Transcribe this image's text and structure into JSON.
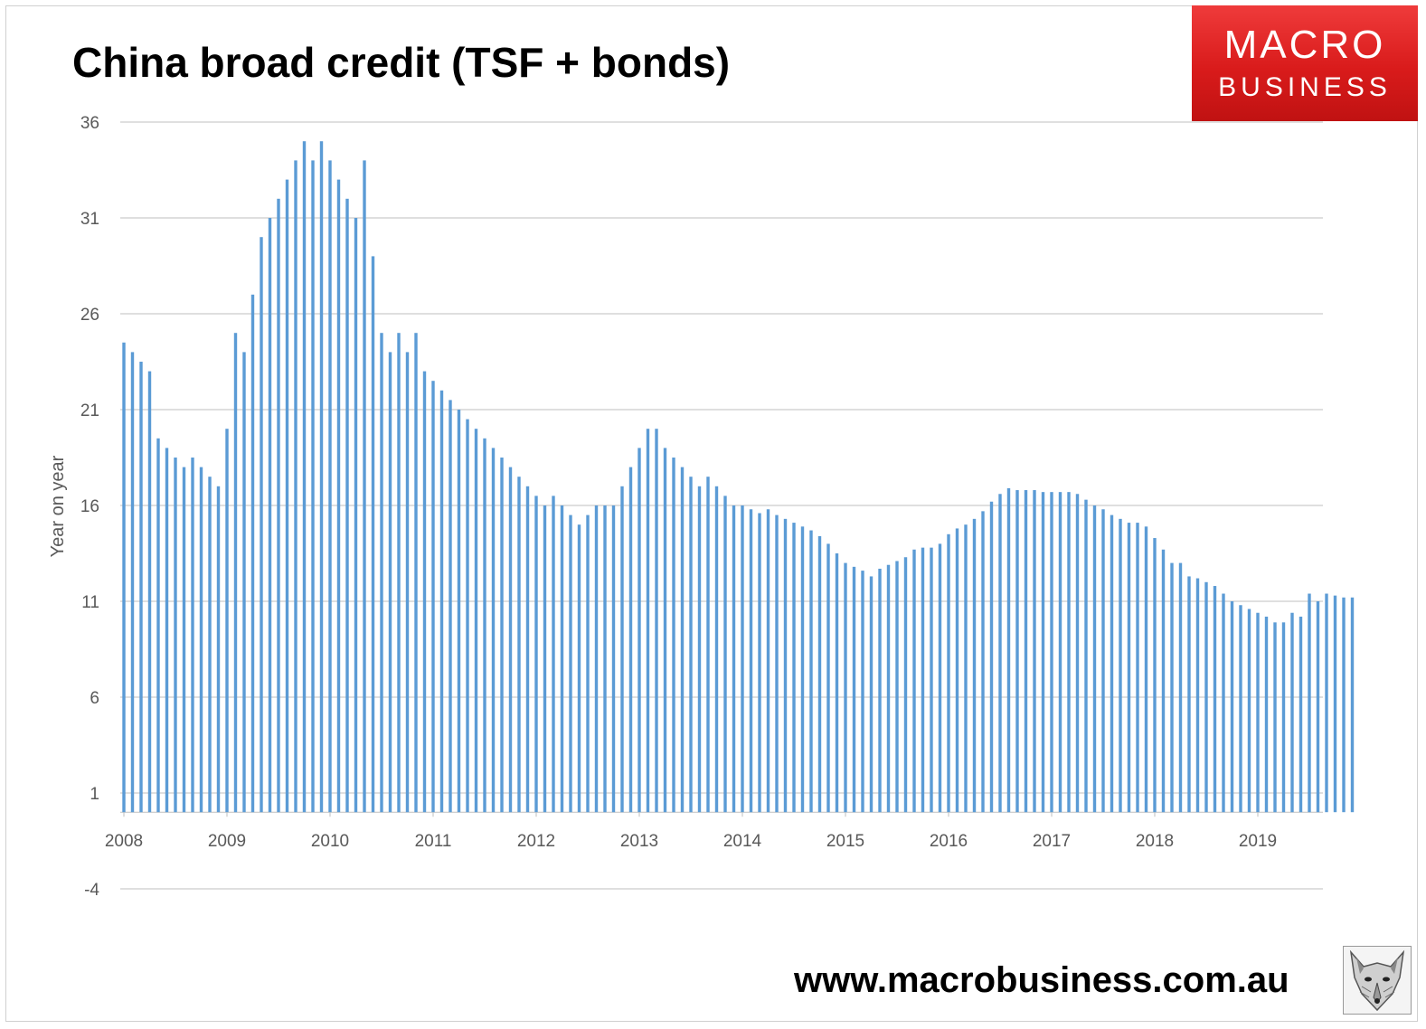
{
  "title": "China broad credit (TSF + bonds)",
  "logo": {
    "line1": "MACRO",
    "line2": "BUSINESS",
    "color": "#d9261c"
  },
  "footer": {
    "url": "www.macrobusiness.com.au",
    "icon": "wolf-head-icon"
  },
  "colors": {
    "bar": "#5b9bd5",
    "grid": "#bfbfbf",
    "axis_text": "#595959"
  },
  "chart_data": {
    "type": "bar",
    "title": "China broad credit (TSF + bonds)",
    "xlabel": "",
    "ylabel": "Year on year",
    "ylim": [
      -4,
      36
    ],
    "yticks": [
      -4,
      1,
      6,
      11,
      16,
      21,
      26,
      31,
      36
    ],
    "xticks": [
      "2008",
      "2009",
      "2010",
      "2011",
      "2012",
      "2013",
      "2014",
      "2015",
      "2016",
      "2017",
      "2018",
      "2019"
    ],
    "x_start": "2008-01",
    "frequency": "monthly",
    "grid": true,
    "legend": "none",
    "values": [
      24.5,
      24.0,
      23.5,
      23.0,
      19.5,
      19.0,
      18.5,
      18.0,
      18.5,
      18.0,
      17.5,
      17.0,
      20.0,
      25.0,
      24.0,
      27.0,
      30.0,
      31.0,
      32.0,
      33.0,
      34.0,
      35.0,
      34.0,
      35.0,
      34.0,
      33.0,
      32.0,
      31.0,
      34.0,
      29.0,
      25.0,
      24.0,
      25.0,
      24.0,
      25.0,
      23.0,
      22.5,
      22.0,
      21.5,
      21.0,
      20.5,
      20.0,
      19.5,
      19.0,
      18.5,
      18.0,
      17.5,
      17.0,
      16.5,
      16.0,
      16.5,
      16.0,
      15.5,
      15.0,
      15.5,
      16.0,
      16.0,
      16.0,
      17.0,
      18.0,
      19.0,
      20.0,
      20.0,
      19.0,
      18.5,
      18.0,
      17.5,
      17.0,
      17.5,
      17.0,
      16.5,
      16.0,
      16.0,
      15.8,
      15.6,
      15.8,
      15.5,
      15.3,
      15.1,
      14.9,
      14.7,
      14.4,
      14.0,
      13.5,
      13.0,
      12.8,
      12.6,
      12.3,
      12.7,
      12.9,
      13.1,
      13.3,
      13.7,
      13.8,
      13.8,
      14.0,
      14.5,
      14.8,
      15.0,
      15.3,
      15.7,
      16.2,
      16.6,
      16.9,
      16.8,
      16.8,
      16.8,
      16.7,
      16.7,
      16.7,
      16.7,
      16.6,
      16.3,
      16.0,
      15.8,
      15.5,
      15.3,
      15.1,
      15.1,
      14.9,
      14.3,
      13.7,
      13.0,
      13.0,
      12.3,
      12.2,
      12.0,
      11.8,
      11.4,
      11.0,
      10.8,
      10.6,
      10.4,
      10.2,
      9.9,
      9.9,
      10.4,
      10.2,
      11.4,
      11.0,
      11.4,
      11.3,
      11.2,
      11.2
    ]
  }
}
